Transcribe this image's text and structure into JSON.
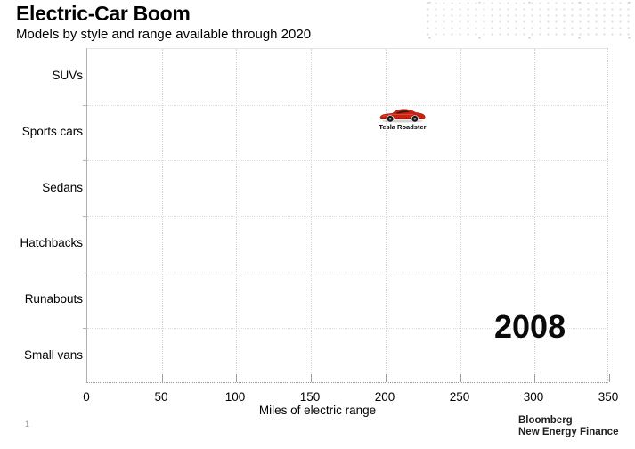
{
  "header": {
    "title": "Electric-Car Boom",
    "subtitle": "Models by style and range available through 2020"
  },
  "chart_data": {
    "type": "scatter",
    "title": "Electric-Car Boom",
    "subtitle": "Models by style and range available through 2020",
    "xlabel": "Miles of electric range",
    "ylabel": "",
    "xlim": [
      0,
      350
    ],
    "xticks": [
      0,
      50,
      100,
      150,
      200,
      250,
      300,
      350
    ],
    "categories": [
      "SUVs",
      "Sports cars",
      "Sedans",
      "Hatchbacks",
      "Runabouts",
      "Small vans"
    ],
    "grid": true,
    "legend": "none",
    "year_label": "2008",
    "points": [
      {
        "label": "Tesla Roadster",
        "category": "Sports cars",
        "range_miles": 212,
        "marker": "red-sports-car-icon",
        "marker_color": "#cc2211"
      }
    ]
  },
  "footer": {
    "page_number": "1",
    "brand_line1": "Bloomberg",
    "brand_line2": "New Energy Finance"
  },
  "colors": {
    "car_red": "#cc2211",
    "car_red_dark": "#8e1008",
    "grid": "#d9d9d9",
    "axis": "#9a9a9a",
    "text": "#000000",
    "page_number_gray": "#9a9a9a"
  }
}
